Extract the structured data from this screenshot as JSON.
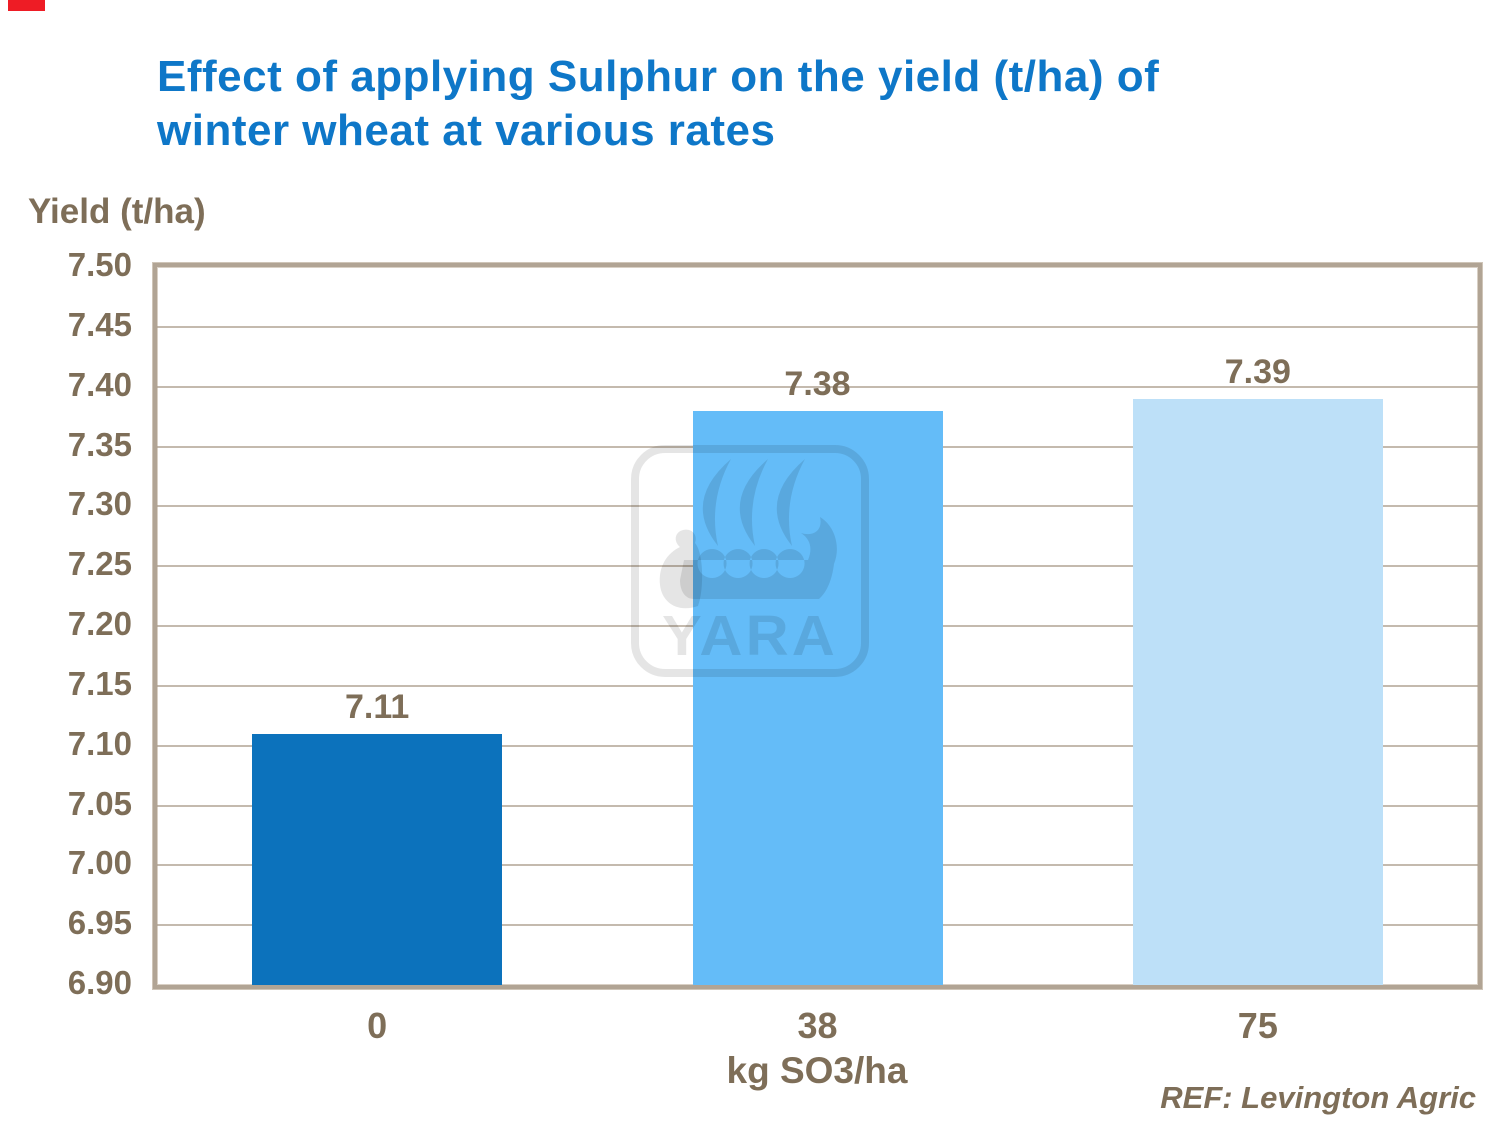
{
  "decorations": {
    "red_mark_color": "#EE1C25"
  },
  "title": {
    "lines": [
      "Effect of applying Sulphur on the yield (t/ha) of",
      "winter wheat at various rates"
    ],
    "full": "Effect of applying Sulphur on the yield (t/ha) of winter wheat at various rates",
    "color": "#0E77C8"
  },
  "footer": {
    "ref_text": "REF: Levington Agric"
  },
  "watermark": {
    "name": "yara-logo",
    "text": "YARA"
  },
  "chart_data": {
    "type": "bar",
    "title": "Effect of applying Sulphur on the yield (t/ha) of winter wheat at various rates",
    "categories": [
      "0",
      "38",
      "75"
    ],
    "values": [
      7.11,
      7.38,
      7.39
    ],
    "bar_labels": [
      "7.11",
      "7.38",
      "7.39"
    ],
    "bar_colors": [
      "#0C72BC",
      "#64BCF8",
      "#BDE0F8"
    ],
    "xlabel": "kg SO3/ha",
    "ylabel": "Yield (t/ha)",
    "ylim": [
      6.9,
      7.5
    ],
    "ytick_step": 0.05,
    "yticks": [
      "7.50",
      "7.45",
      "7.40",
      "7.35",
      "7.30",
      "7.25",
      "7.20",
      "7.15",
      "7.10",
      "7.05",
      "7.00",
      "6.95",
      "6.90"
    ],
    "grid": "horizontal",
    "legend": "none",
    "text_color": "#7E6E58",
    "grid_color": "#AB9C8C",
    "border_color": "#B1A494"
  }
}
